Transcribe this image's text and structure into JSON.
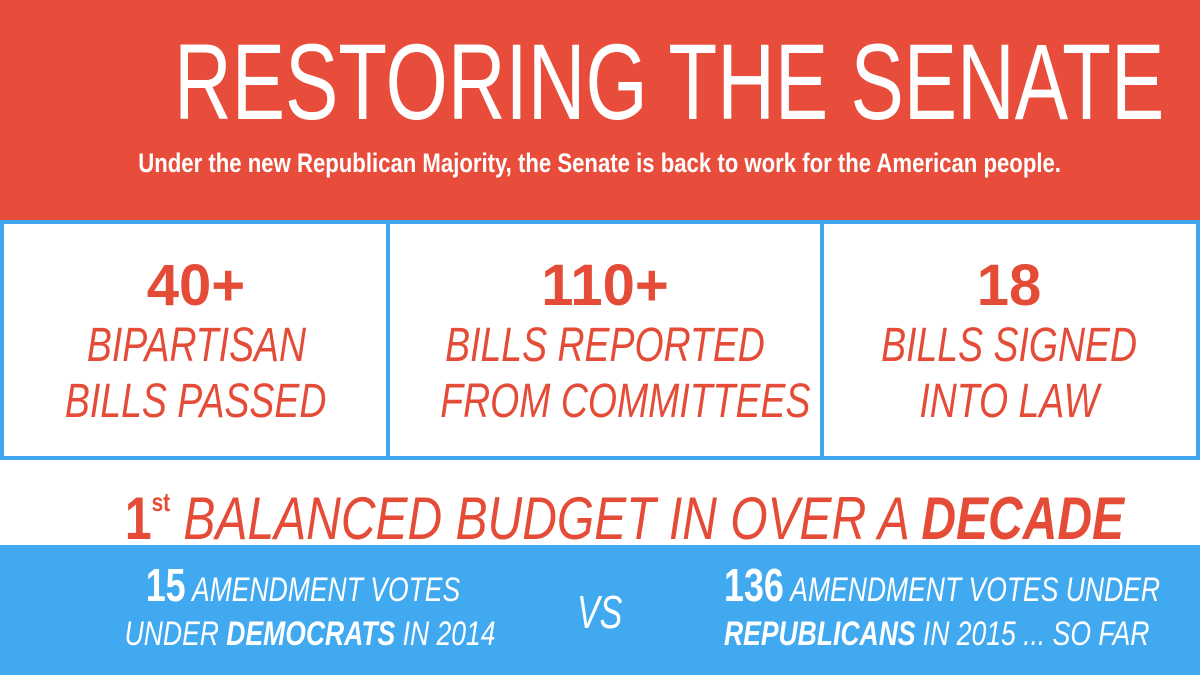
{
  "header": {
    "title": "RESTORING THE SENATE",
    "subtitle": "Under the new Republican Majority, the Senate is back to work for the American people."
  },
  "stats": [
    {
      "number": "40+",
      "lines": [
        "BIPARTISAN",
        "BILLS PASSED"
      ]
    },
    {
      "number": "110+",
      "lines": [
        "BILLS REPORTED",
        "FROM COMMITTEES"
      ]
    },
    {
      "number": "18",
      "lines": [
        "BILLS SIGNED",
        "INTO LAW"
      ]
    }
  ],
  "budget": {
    "ordinal": "1",
    "suffix": "st",
    "text": "BALANCED BUDGET IN OVER A",
    "emphasis": "DECADE"
  },
  "comparison": {
    "left": {
      "number": "15",
      "line1": "AMENDMENT VOTES",
      "prefix": "UNDER",
      "party": "DEMOCRATS",
      "suffix": "IN 2014"
    },
    "separator": "VS",
    "right": {
      "number": "136",
      "line1": "AMENDMENT VOTES UNDER",
      "party": "REPUBLICANS",
      "suffix": "IN 2015 ... SO FAR"
    }
  }
}
